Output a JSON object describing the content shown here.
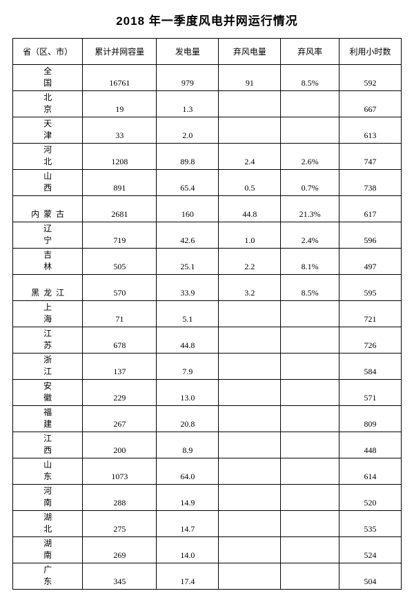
{
  "title": "2018 年一季度风电并网运行情况",
  "columns": [
    "省（区、市）",
    "累计并网容量",
    "发电量",
    "弃风电量",
    "弃风率",
    "利用小时数"
  ],
  "rows": [
    {
      "region": "全国",
      "spread": 2,
      "capacity": "16761",
      "gen": "979",
      "curtail_e": "91",
      "curtail_r": "8.5%",
      "hours": "592"
    },
    {
      "region": "北京",
      "spread": 2,
      "capacity": "19",
      "gen": "1.3",
      "curtail_e": "",
      "curtail_r": "",
      "hours": "667"
    },
    {
      "region": "天津",
      "spread": 2,
      "capacity": "33",
      "gen": "2.0",
      "curtail_e": "",
      "curtail_r": "",
      "hours": "613"
    },
    {
      "region": "河北",
      "spread": 2,
      "capacity": "1208",
      "gen": "89.8",
      "curtail_e": "2.4",
      "curtail_r": "2.6%",
      "hours": "747"
    },
    {
      "region": "山西",
      "spread": 2,
      "capacity": "891",
      "gen": "65.4",
      "curtail_e": "0.5",
      "curtail_r": "0.7%",
      "hours": "738"
    },
    {
      "region": "内蒙古",
      "spread": 3,
      "capacity": "2681",
      "gen": "160",
      "curtail_e": "44.8",
      "curtail_r": "21.3%",
      "hours": "617"
    },
    {
      "region": "辽宁",
      "spread": 2,
      "capacity": "719",
      "gen": "42.6",
      "curtail_e": "1.0",
      "curtail_r": "2.4%",
      "hours": "596"
    },
    {
      "region": "吉林",
      "spread": 2,
      "capacity": "505",
      "gen": "25.1",
      "curtail_e": "2.2",
      "curtail_r": "8.1%",
      "hours": "497"
    },
    {
      "region": "黑龙江",
      "spread": 3,
      "capacity": "570",
      "gen": "33.9",
      "curtail_e": "3.2",
      "curtail_r": "8.5%",
      "hours": "595"
    },
    {
      "region": "上海",
      "spread": 2,
      "capacity": "71",
      "gen": "5.1",
      "curtail_e": "",
      "curtail_r": "",
      "hours": "721"
    },
    {
      "region": "江苏",
      "spread": 2,
      "capacity": "678",
      "gen": "44.8",
      "curtail_e": "",
      "curtail_r": "",
      "hours": "726"
    },
    {
      "region": "浙江",
      "spread": 2,
      "capacity": "137",
      "gen": "7.9",
      "curtail_e": "",
      "curtail_r": "",
      "hours": "584"
    },
    {
      "region": "安徽",
      "spread": 2,
      "capacity": "229",
      "gen": "13.0",
      "curtail_e": "",
      "curtail_r": "",
      "hours": "571"
    },
    {
      "region": "福建",
      "spread": 2,
      "capacity": "267",
      "gen": "20.8",
      "curtail_e": "",
      "curtail_r": "",
      "hours": "809"
    },
    {
      "region": "江西",
      "spread": 2,
      "capacity": "200",
      "gen": "8.9",
      "curtail_e": "",
      "curtail_r": "",
      "hours": "448"
    },
    {
      "region": "山东",
      "spread": 2,
      "capacity": "1073",
      "gen": "64.0",
      "curtail_e": "",
      "curtail_r": "",
      "hours": "614"
    },
    {
      "region": "河南",
      "spread": 2,
      "capacity": "288",
      "gen": "14.9",
      "curtail_e": "",
      "curtail_r": "",
      "hours": "520"
    },
    {
      "region": "湖北",
      "spread": 2,
      "capacity": "275",
      "gen": "14.7",
      "curtail_e": "",
      "curtail_r": "",
      "hours": "535"
    },
    {
      "region": "湖南",
      "spread": 2,
      "capacity": "269",
      "gen": "14.0",
      "curtail_e": "",
      "curtail_r": "",
      "hours": "524"
    },
    {
      "region": "广东",
      "spread": 2,
      "capacity": "345",
      "gen": "17.4",
      "curtail_e": "",
      "curtail_r": "",
      "hours": "504"
    }
  ]
}
